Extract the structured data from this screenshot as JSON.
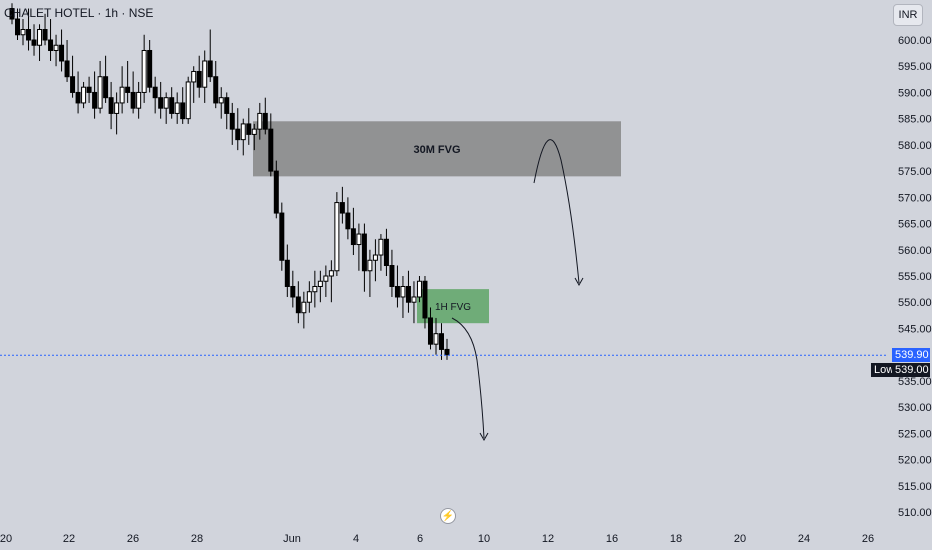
{
  "header": {
    "symbol_line": "CHALET HOTEL · 1h · NSE",
    "currency": "INR"
  },
  "price_badge": "539.90",
  "low_badge": {
    "label": "Low",
    "value": "539.00"
  },
  "logo_icon": "lightning-icon",
  "colors": {
    "background": "#d1d4dc",
    "candle": "#000000",
    "fvg30": "#868686",
    "fvg1h": "#5ea566",
    "current_line": "#2962ff"
  },
  "chart_data": {
    "type": "candlestick",
    "x_ticks": [
      "20",
      "22",
      "26",
      "28",
      "Jun",
      "4",
      "6",
      "10",
      "12",
      "16",
      "18",
      "20",
      "24",
      "26"
    ],
    "y_ticks": [
      "510.00",
      "515.00",
      "520.00",
      "525.00",
      "530.00",
      "535.00",
      "545.00",
      "550.00",
      "555.00",
      "560.00",
      "565.00",
      "570.00",
      "575.00",
      "580.00",
      "585.00",
      "590.00",
      "595.00",
      "600.00"
    ],
    "ylim": [
      508,
      606
    ],
    "current_price": 539.9,
    "low": 539.0,
    "zones": [
      {
        "label": "30M FVG",
        "low": 574,
        "high": 584.5
      },
      {
        "label": "1H FVG",
        "low": 546,
        "high": 552.5
      }
    ],
    "candles": [
      [
        606,
        607,
        603,
        604
      ],
      [
        604,
        606,
        600,
        601
      ],
      [
        601,
        604,
        599,
        602
      ],
      [
        602,
        606,
        598,
        600
      ],
      [
        600,
        603,
        597,
        599
      ],
      [
        599,
        603,
        596,
        602
      ],
      [
        602,
        605,
        599,
        600
      ],
      [
        600,
        604,
        596,
        598
      ],
      [
        598,
        601,
        595,
        599
      ],
      [
        599,
        602,
        594,
        596
      ],
      [
        596,
        600,
        592,
        593
      ],
      [
        593,
        597,
        589,
        590
      ],
      [
        590,
        594,
        586,
        588
      ],
      [
        588,
        592,
        587,
        591
      ],
      [
        591,
        593,
        588,
        590
      ],
      [
        590,
        594,
        585,
        587
      ],
      [
        587,
        596,
        586,
        593
      ],
      [
        593,
        597,
        588,
        589
      ],
      [
        589,
        592,
        583,
        586
      ],
      [
        586,
        590,
        582,
        588
      ],
      [
        588,
        595,
        586,
        591
      ],
      [
        591,
        596,
        588,
        590
      ],
      [
        590,
        594,
        586,
        587
      ],
      [
        587,
        592,
        585,
        590
      ],
      [
        590,
        601,
        588,
        598
      ],
      [
        598,
        600,
        590,
        591
      ],
      [
        591,
        593,
        586,
        589
      ],
      [
        589,
        592,
        585,
        587
      ],
      [
        587,
        590,
        584,
        589
      ],
      [
        589,
        591,
        585,
        586
      ],
      [
        586,
        590,
        584,
        588
      ],
      [
        588,
        591,
        584,
        585
      ],
      [
        585,
        593,
        584,
        592
      ],
      [
        592,
        595,
        588,
        594
      ],
      [
        594,
        597,
        589,
        591
      ],
      [
        591,
        598,
        588,
        596
      ],
      [
        596,
        602,
        592,
        593
      ],
      [
        593,
        596,
        587,
        588
      ],
      [
        588,
        591,
        585,
        589
      ],
      [
        589,
        590,
        583,
        586
      ],
      [
        586,
        588,
        580,
        583
      ],
      [
        583,
        587,
        579,
        581
      ],
      [
        581,
        585,
        578,
        584
      ],
      [
        584,
        587,
        580,
        582
      ],
      [
        582,
        584,
        579,
        583
      ],
      [
        583,
        588,
        581,
        586
      ],
      [
        586,
        589,
        582,
        583
      ],
      [
        583,
        586,
        574,
        575
      ],
      [
        575,
        577,
        566,
        567
      ],
      [
        567,
        569,
        556,
        558
      ],
      [
        558,
        561,
        551,
        553
      ],
      [
        553,
        556,
        549,
        551
      ],
      [
        551,
        554,
        546,
        548
      ],
      [
        548,
        552,
        545,
        550
      ],
      [
        550,
        554,
        548,
        552
      ],
      [
        552,
        556,
        549,
        553
      ],
      [
        553,
        556,
        550,
        554
      ],
      [
        554,
        557,
        551,
        555
      ],
      [
        555,
        558,
        550,
        556
      ],
      [
        556,
        571,
        555,
        569
      ],
      [
        569,
        572,
        565,
        567
      ],
      [
        567,
        570,
        562,
        564
      ],
      [
        564,
        568,
        559,
        561
      ],
      [
        561,
        565,
        556,
        563
      ],
      [
        563,
        565,
        552,
        556
      ],
      [
        556,
        560,
        551,
        558
      ],
      [
        558,
        562,
        554,
        559
      ],
      [
        559,
        563,
        556,
        562
      ],
      [
        562,
        564,
        555,
        557
      ],
      [
        557,
        560,
        551,
        553
      ],
      [
        553,
        557,
        549,
        551
      ],
      [
        551,
        555,
        547,
        553
      ],
      [
        553,
        556,
        548,
        550
      ],
      [
        550,
        554,
        546,
        551
      ],
      [
        551,
        555,
        550,
        554
      ],
      [
        554,
        555,
        545,
        547
      ],
      [
        547,
        549,
        541,
        542
      ],
      [
        542,
        547,
        540,
        544
      ],
      [
        544,
        546,
        539,
        541
      ],
      [
        541,
        543,
        539,
        540
      ]
    ]
  }
}
